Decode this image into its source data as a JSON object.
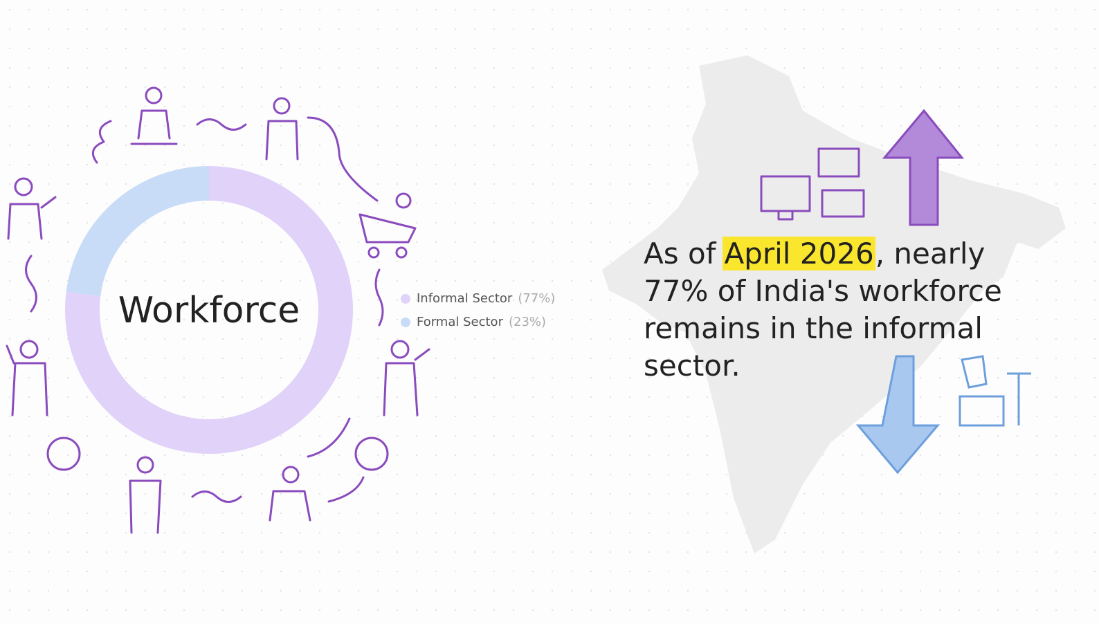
{
  "chart_data": {
    "type": "donut",
    "center_label": "Workforce",
    "categories": [
      "Informal Sector",
      "Formal Sector"
    ],
    "values": [
      77,
      23
    ],
    "value_labels": [
      "(77%)",
      "(23%)"
    ],
    "colors": [
      "#e1d2f9",
      "#c8dcf8"
    ],
    "annotation": {
      "before": "As of",
      "highlight": "April 2026",
      "after": ", nearly 77% of India's workforce remains in the informal sector."
    }
  }
}
